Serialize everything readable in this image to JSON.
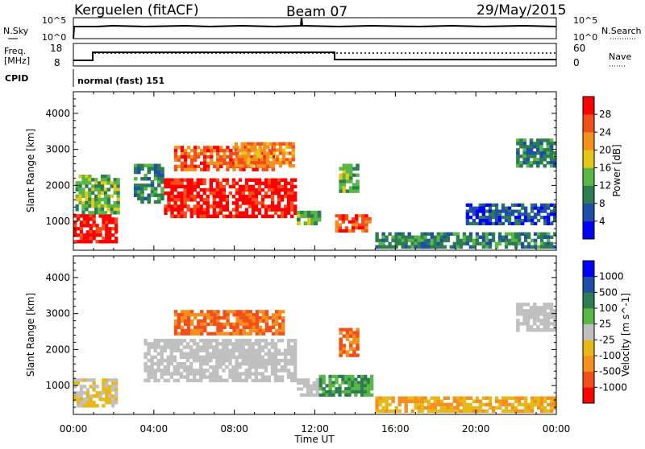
{
  "header": {
    "station": "Kerguelen (fitACF)",
    "beam": "Beam 07",
    "date": "29/May/2015"
  },
  "noise_panel": {
    "left_label": "N.Sky",
    "left_ticks": [
      "10^5",
      "10^0"
    ],
    "right_label": "N.Search",
    "right_ticks": [
      "10^5",
      "10^0"
    ]
  },
  "freq_panel": {
    "left_label_line1": "Freq.",
    "left_label_line2": "[MHz]",
    "left_ticks": [
      "18",
      "8"
    ],
    "right_label": "Nave",
    "right_ticks": [
      "60",
      "0"
    ]
  },
  "cpid": {
    "label": "CPID",
    "value": "normal (fast) 151"
  },
  "chart_data": [
    {
      "type": "heatmap",
      "name": "power",
      "ylabel": "Slant Range [km]",
      "yticks": [
        "1000",
        "2000",
        "3000",
        "4000"
      ],
      "ylim": [
        200,
        4600
      ],
      "xlabel": "Time UT",
      "xticks": [
        "00:00",
        "04:00",
        "08:00",
        "12:00",
        "16:00",
        "20:00",
        "00:00"
      ],
      "xlim_hours": [
        0,
        24
      ],
      "colorbar": {
        "label": "Power [dB]",
        "ticks": [
          "28",
          "24",
          "20",
          "16",
          "12",
          "8",
          "4"
        ],
        "colors": [
          "#0000ff",
          "#1f4fa8",
          "#2e7d52",
          "#59b845",
          "#e6c619",
          "#f5901e",
          "#f44f1a",
          "#ff0000"
        ]
      },
      "regions": [
        {
          "t": [
            0.0,
            2.2
          ],
          "r": [
            400,
            1200
          ],
          "level": 7
        },
        {
          "t": [
            0.1,
            2.3
          ],
          "r": [
            1200,
            2300
          ],
          "level": 3
        },
        {
          "t": [
            3.0,
            4.5
          ],
          "r": [
            1500,
            2600
          ],
          "level": 2
        },
        {
          "t": [
            4.5,
            11.1
          ],
          "r": [
            1100,
            2200
          ],
          "level": 7
        },
        {
          "t": [
            5.0,
            10.0
          ],
          "r": [
            2400,
            3100
          ],
          "level": 6
        },
        {
          "t": [
            8.0,
            11.0
          ],
          "r": [
            2500,
            3200
          ],
          "level": 5
        },
        {
          "t": [
            11.1,
            12.3
          ],
          "r": [
            900,
            1300
          ],
          "level": 3
        },
        {
          "t": [
            13.0,
            14.8
          ],
          "r": [
            700,
            1200
          ],
          "level": 6
        },
        {
          "t": [
            13.2,
            14.2
          ],
          "r": [
            1800,
            2600
          ],
          "level": 3
        },
        {
          "t": [
            15.0,
            24.0
          ],
          "r": [
            250,
            700
          ],
          "level": 2
        },
        {
          "t": [
            19.5,
            24.0
          ],
          "r": [
            900,
            1500
          ],
          "level": 1
        },
        {
          "t": [
            22.0,
            24.0
          ],
          "r": [
            2500,
            3300
          ],
          "level": 2
        }
      ]
    },
    {
      "type": "heatmap",
      "name": "velocity",
      "ylabel": "Slant Range [km]",
      "yticks": [
        "1000",
        "2000",
        "3000",
        "4000"
      ],
      "ylim": [
        200,
        4600
      ],
      "xlabel": "Time UT",
      "xticks": [
        "00:00",
        "04:00",
        "08:00",
        "12:00",
        "16:00",
        "20:00",
        "00:00"
      ],
      "xlim_hours": [
        0,
        24
      ],
      "colorbar": {
        "label": "Velocity [m s^-1]",
        "ticks": [
          "1000",
          "500",
          "100",
          "25",
          "-25",
          "-100",
          "-500",
          "-1000"
        ],
        "colors": [
          "#ff0000",
          "#f44f1a",
          "#f5901e",
          "#e6b81a",
          "#c0c0c0",
          "#59b845",
          "#2e7d52",
          "#1f4fa8",
          "#0000ff"
        ]
      },
      "regions": [
        {
          "t": [
            0.0,
            2.2
          ],
          "r": [
            400,
            1200
          ],
          "v": -25
        },
        {
          "t": [
            3.5,
            11.1
          ],
          "r": [
            1100,
            2300
          ],
          "v": 0
        },
        {
          "t": [
            5.0,
            10.5
          ],
          "r": [
            2400,
            3100
          ],
          "v": -500
        },
        {
          "t": [
            11.1,
            12.2
          ],
          "r": [
            700,
            1200
          ],
          "v": 0
        },
        {
          "t": [
            12.2,
            14.9
          ],
          "r": [
            700,
            1300
          ],
          "v": 100
        },
        {
          "t": [
            13.2,
            14.2
          ],
          "r": [
            1800,
            2600
          ],
          "v": -500
        },
        {
          "t": [
            15.0,
            24.0
          ],
          "r": [
            250,
            700
          ],
          "v": -100
        },
        {
          "t": [
            22.0,
            24.0
          ],
          "r": [
            2500,
            3300
          ],
          "v": 0
        }
      ]
    }
  ]
}
